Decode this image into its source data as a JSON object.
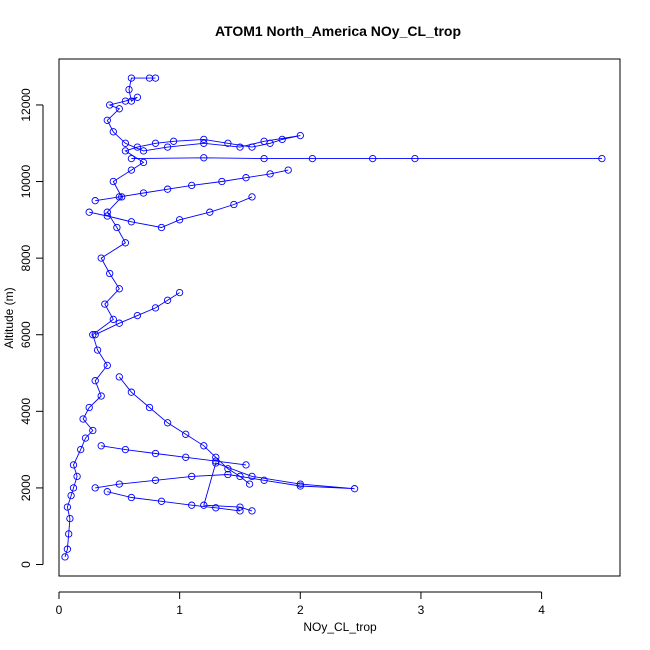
{
  "chart_data": {
    "type": "line",
    "title": "ATOM1 North_America NOy_CL_trop",
    "xlabel": "NOy_CL_trop",
    "ylabel": "Altitude (m)",
    "xlim": [
      0,
      4.65
    ],
    "ylim": [
      -300,
      13200
    ],
    "xticks": [
      0,
      1,
      2,
      3,
      4
    ],
    "yticks": [
      0,
      2000,
      4000,
      6000,
      8000,
      10000,
      12000
    ],
    "series_color": "#0000ff",
    "marker": "open-circle",
    "series": [
      {
        "x": [
          0.05,
          0.07,
          0.08,
          0.09,
          0.07,
          0.1,
          0.12,
          0.15,
          0.12,
          0.18,
          0.22,
          0.28,
          0.2,
          0.25,
          0.35,
          0.3,
          0.4,
          0.32,
          0.28,
          0.45,
          0.38,
          0.5,
          0.42,
          0.35,
          0.55,
          0.48,
          0.4,
          0.52,
          0.45,
          0.6,
          0.7,
          0.55,
          0.65,
          0.8,
          0.95,
          1.2,
          1.4,
          1.6,
          1.75,
          1.85,
          2.0,
          1.7,
          1.5,
          1.2,
          0.9,
          0.7,
          0.55,
          0.45,
          0.4,
          0.5,
          0.42,
          0.55,
          0.65,
          0.6,
          0.58,
          0.6,
          0.75,
          0.8
        ],
        "y": [
          200,
          400,
          800,
          1200,
          1500,
          1800,
          2000,
          2300,
          2600,
          3000,
          3300,
          3500,
          3800,
          4100,
          4400,
          4800,
          5200,
          5600,
          6000,
          6400,
          6800,
          7200,
          7600,
          8000,
          8400,
          8800,
          9200,
          9600,
          10000,
          10300,
          10500,
          10800,
          10900,
          11000,
          11050,
          11100,
          11000,
          10900,
          11000,
          11100,
          11200,
          11050,
          10900,
          11000,
          10900,
          10800,
          11000,
          11300,
          11600,
          11900,
          12000,
          12100,
          12200,
          12100,
          12400,
          12700,
          12700,
          12700
        ]
      },
      {
        "x": [
          0.3,
          0.5,
          0.8,
          1.1,
          1.4,
          1.7,
          2.0,
          2.45,
          2.0,
          1.6,
          1.3,
          1.2,
          1.5,
          1.6
        ],
        "y": [
          2000,
          2100,
          2200,
          2300,
          2350,
          2200,
          2050,
          1980,
          2100,
          2300,
          2650,
          1550,
          1500,
          1400
        ]
      },
      {
        "x": [
          0.4,
          0.6,
          0.85,
          1.1,
          1.3,
          1.5
        ],
        "y": [
          1900,
          1750,
          1650,
          1550,
          1480,
          1400
        ]
      },
      {
        "x": [
          0.35,
          0.55,
          0.8,
          1.05,
          1.3,
          1.55
        ],
        "y": [
          3100,
          3000,
          2900,
          2800,
          2700,
          2600
        ]
      },
      {
        "x": [
          0.25,
          0.4,
          0.6,
          0.85,
          1.0,
          1.25,
          1.45,
          1.6
        ],
        "y": [
          9200,
          9100,
          8950,
          8800,
          9000,
          9200,
          9400,
          9600
        ]
      },
      {
        "x": [
          0.3,
          0.5,
          0.7,
          0.9,
          1.1,
          1.35,
          1.55,
          1.75,
          1.9
        ],
        "y": [
          9500,
          9600,
          9700,
          9800,
          9900,
          10000,
          10100,
          10200,
          10300
        ]
      },
      {
        "x": [
          0.6,
          1.2,
          1.7,
          2.1,
          2.6,
          2.95,
          4.5
        ],
        "y": [
          10600,
          10620,
          10600,
          10600,
          10600,
          10600,
          10600
        ]
      },
      {
        "x": [
          0.5,
          0.6,
          0.75,
          0.9,
          1.05,
          1.2,
          1.3,
          1.4,
          1.5,
          1.58
        ],
        "y": [
          4900,
          4500,
          4100,
          3700,
          3400,
          3100,
          2800,
          2500,
          2300,
          2100
        ]
      },
      {
        "x": [
          0.3,
          0.5,
          0.65,
          0.8,
          0.9,
          1.0
        ],
        "y": [
          6000,
          6300,
          6500,
          6700,
          6900,
          7100
        ]
      }
    ]
  }
}
